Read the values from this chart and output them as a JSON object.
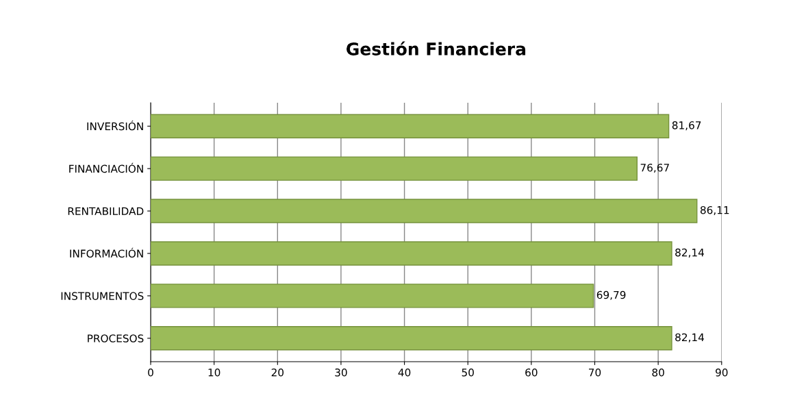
{
  "chart_data": {
    "type": "bar",
    "orientation": "horizontal",
    "title": "Gestión Financiera",
    "categories": [
      "INVERSIÓN",
      "FINANCIACIÓN",
      "RENTABILIDAD",
      "INFORMACIÓN",
      "INSTRUMENTOS",
      "PROCESOS"
    ],
    "values": [
      81.67,
      76.67,
      86.11,
      82.14,
      69.79,
      82.14
    ],
    "value_labels": [
      "81,67",
      "76,67",
      "86,11",
      "82,14",
      "69,79",
      "82,14"
    ],
    "color": "#9bbb59",
    "xlim": [
      0,
      90
    ],
    "xticks": [
      0,
      10,
      20,
      30,
      40,
      50,
      60,
      70,
      80,
      90
    ],
    "grid": "x"
  }
}
